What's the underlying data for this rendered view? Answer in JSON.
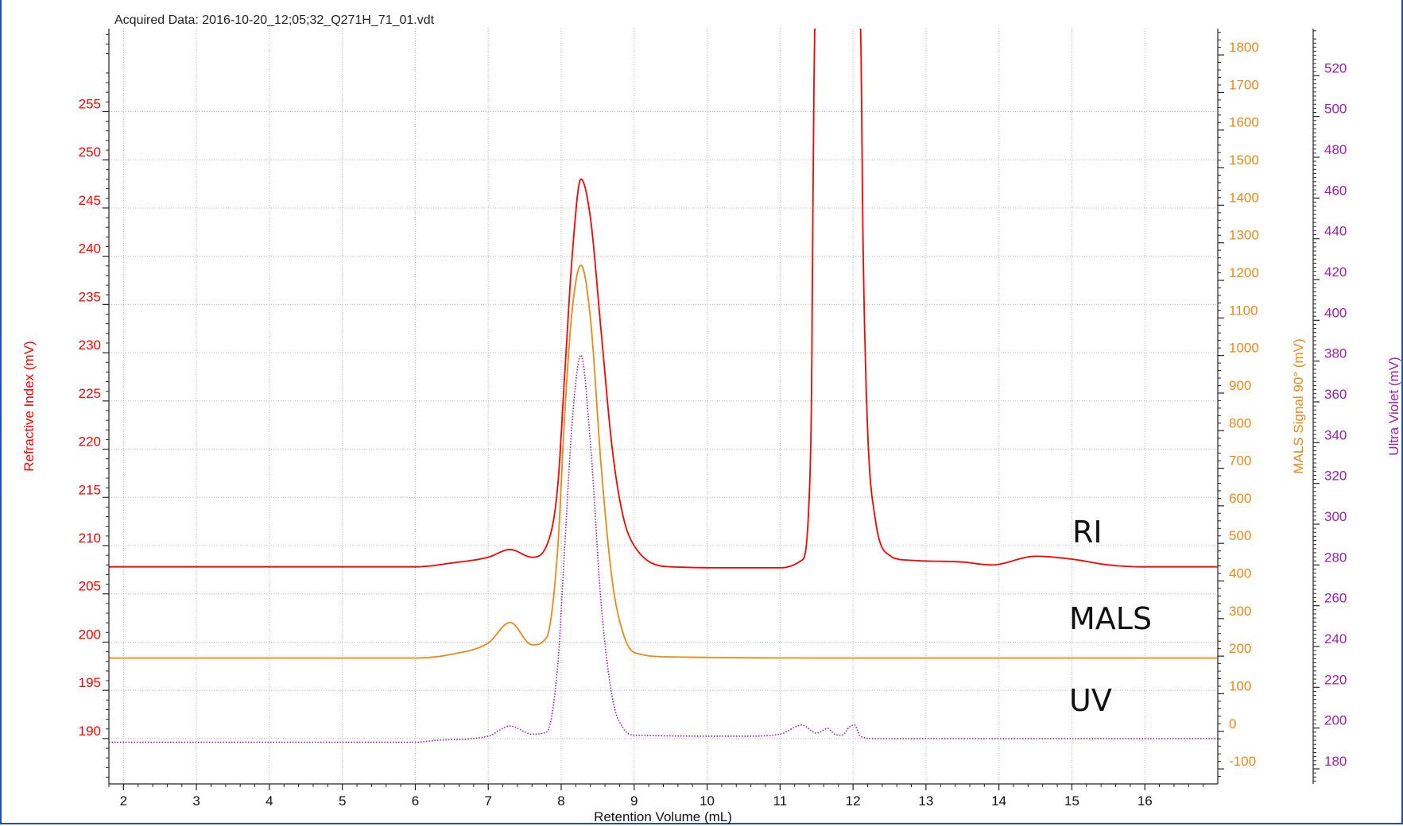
{
  "header": {
    "acquired_label": "Acquired Data: 2016-10-20_12;05;32_Q271H_71_01.vdt"
  },
  "chart_data": {
    "type": "line",
    "xlabel": "Retention Volume (mL)",
    "xlim": [
      1.8,
      17.0
    ],
    "xticks": [
      "2",
      "3",
      "4",
      "5",
      "6",
      "7",
      "8",
      "9",
      "10",
      "11",
      "12",
      "13",
      "14",
      "15",
      "16"
    ],
    "axes": {
      "ri": {
        "label": "Refractive Index (mV)",
        "color": "#ff0000",
        "ylim": [
          185.3,
          263.6
        ],
        "ticks": [
          "190",
          "195",
          "200",
          "205",
          "210",
          "215",
          "220",
          "225",
          "230",
          "235",
          "240",
          "245",
          "250",
          "255"
        ]
      },
      "mals": {
        "label": "MALS Signal 90° (mV)",
        "color": "#e8891a",
        "ylim": [
          -140,
          1870
        ],
        "ticks": [
          "-100",
          "0",
          "100",
          "200",
          "300",
          "400",
          "500",
          "600",
          "700",
          "800",
          "900",
          "1000",
          "1100",
          "1200",
          "1300",
          "1400",
          "1500",
          "1600",
          "1700",
          "1800"
        ]
      },
      "uv": {
        "label": "Ultra Violet (mV)",
        "color": "#9b1fb0",
        "ylim": [
          172.6,
          543.1
        ],
        "ticks": [
          "180",
          "200",
          "220",
          "240",
          "260",
          "280",
          "300",
          "320",
          "340",
          "360",
          "380",
          "400",
          "420",
          "440",
          "460",
          "480",
          "500",
          "520"
        ]
      }
    },
    "grid": true,
    "series": [
      {
        "name": "RI",
        "axis": "ri",
        "color": "#ff0000",
        "style": "solid",
        "x": [
          1.8,
          6.0,
          6.5,
          7.0,
          7.3,
          7.6,
          7.8,
          7.95,
          8.05,
          8.15,
          8.27,
          8.4,
          8.55,
          8.7,
          8.85,
          9.0,
          9.5,
          10.5,
          11.0,
          11.3,
          11.42,
          11.48,
          11.52,
          12.1,
          12.14,
          12.2,
          12.3,
          12.5,
          12.75,
          13.5,
          13.9,
          14.5,
          15.0,
          15.5,
          16.0,
          17.0
        ],
        "y": [
          207.8,
          207.8,
          208.2,
          208.8,
          209.6,
          208.8,
          210.0,
          216.0,
          228.0,
          240.0,
          248.0,
          244.0,
          232.0,
          220.0,
          213.0,
          210.0,
          207.8,
          207.7,
          207.7,
          208.5,
          220.0,
          264.0,
          264.0,
          264.0,
          240.0,
          222.0,
          213.0,
          209.0,
          208.5,
          208.3,
          208.0,
          208.9,
          208.6,
          208.0,
          207.8,
          207.8
        ]
      },
      {
        "name": "MALS",
        "axis": "mals",
        "color": "#e8891a",
        "style": "solid",
        "x": [
          1.8,
          6.0,
          6.5,
          7.0,
          7.3,
          7.6,
          7.8,
          7.95,
          8.05,
          8.15,
          8.27,
          8.4,
          8.55,
          8.7,
          8.85,
          9.0,
          9.5,
          12.0,
          17.0
        ],
        "y": [
          195,
          195,
          205,
          235,
          290,
          230,
          250,
          480,
          850,
          1120,
          1240,
          1100,
          700,
          400,
          260,
          210,
          198,
          195,
          195
        ]
      },
      {
        "name": "UV",
        "axis": "uv",
        "color": "#9b1fb0",
        "style": "dotted",
        "x": [
          1.8,
          6.0,
          6.3,
          7.0,
          7.3,
          7.6,
          7.8,
          7.95,
          8.05,
          8.15,
          8.27,
          8.4,
          8.55,
          8.7,
          8.85,
          9.0,
          10.5,
          11.0,
          11.3,
          11.5,
          11.65,
          11.75,
          11.85,
          11.95,
          12.02,
          12.1,
          12.3,
          13.5,
          14.0,
          17.0
        ],
        "y": [
          193.0,
          193.0,
          194.0,
          196.0,
          201.0,
          197.0,
          198.0,
          230.0,
          290.0,
          350.0,
          383.0,
          340.0,
          260.0,
          215.0,
          200.0,
          196.5,
          196.0,
          197.0,
          201.5,
          197.5,
          199.8,
          197.0,
          196.5,
          200.5,
          201.5,
          196.0,
          194.8,
          194.8,
          194.8,
          194.8
        ]
      }
    ],
    "annotations": [
      "RI",
      "MALS",
      "UV"
    ]
  }
}
